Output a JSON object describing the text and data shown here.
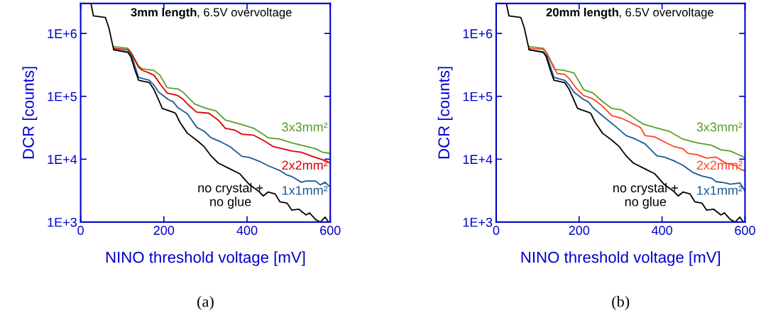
{
  "chart_data": [
    {
      "type": "line",
      "title": "3mm length",
      "subtitle": ", 6.5V overvoltage",
      "xlabel": "NINO threshold voltage [mV]",
      "ylabel": "DCR [counts]",
      "log": "y",
      "xlim": [
        0,
        600
      ],
      "xticks": [
        0,
        200,
        400,
        600
      ],
      "ylim": [
        1000,
        3000000
      ],
      "yticks": [
        {
          "value": 1000,
          "label": "1E+3"
        },
        {
          "value": 10000,
          "label": "1E+4"
        },
        {
          "value": 100000,
          "label": "1E+5"
        },
        {
          "value": 1000000,
          "label": "1E+6"
        }
      ],
      "grid": false,
      "legend": false,
      "annotations": [
        "(a)"
      ],
      "series": [
        {
          "name": "3x3mm²",
          "color": "#5a9e2c",
          "x": [
            79.4,
            113.6,
            122.2,
            139.3,
            147.8,
            176.4,
            190.7,
            207.8,
            233.5,
            245,
            273.5,
            302,
            324.8,
            347.7,
            381.9,
            416.2,
            450.4,
            479,
            507.5,
            530.4,
            564.6,
            581.6,
            600
          ],
          "values": [
            620000,
            580000,
            490000,
            305000,
            275000,
            257000,
            216000,
            137000,
            131000,
            118000,
            76000,
            64000,
            59000,
            42000,
            36500,
            31000,
            22000,
            20800,
            18200,
            16700,
            14700,
            12900,
            12400
          ]
        },
        {
          "name": "2x2mm²",
          "color": "#e00000",
          "x": [
            79.4,
            113.6,
            122.2,
            139.3,
            147.8,
            165,
            176.4,
            193.5,
            207.8,
            233.5,
            245,
            262,
            279.2,
            307.7,
            330.6,
            347.7,
            370.5,
            387.6,
            416.2,
            439,
            462,
            484.7,
            507.5,
            530.4,
            553.2,
            587.5,
            600
          ],
          "values": [
            580000,
            550000,
            470000,
            290000,
            260000,
            235000,
            216000,
            150000,
            113000,
            103000,
            91000,
            70000,
            56000,
            54000,
            42000,
            31000,
            29000,
            25000,
            24000,
            20000,
            16000,
            14700,
            13500,
            12900,
            11300,
            9500,
            8700
          ]
        },
        {
          "name": "1x1mm²",
          "color": "#1a5a96",
          "x": [
            79.4,
            113.6,
            122.2,
            130.7,
            139.3,
            165,
            176.4,
            187.8,
            210.7,
            222.1,
            233.5,
            256.3,
            279.2,
            296.3,
            313.4,
            336.3,
            359.1,
            387.6,
            404.8,
            427.6,
            450.4,
            479,
            496.1,
            507.5,
            530.4,
            541.8,
            564.6,
            576,
            587.5,
            600
          ],
          "values": [
            550000,
            510000,
            440000,
            300000,
            200000,
            180000,
            150000,
            116000,
            89000,
            82000,
            66000,
            53000,
            32000,
            28000,
            22000,
            19000,
            15800,
            11100,
            10700,
            9400,
            7900,
            6600,
            5600,
            5300,
            4300,
            4500,
            4500,
            3900,
            4300,
            3600
          ]
        },
        {
          "name": "no crystal +\nno glue",
          "color": "#000000",
          "x": [
            25.1,
            30.8,
            59.4,
            67.9,
            79.4,
            113.6,
            120.5,
            130.7,
            139.3,
            165,
            176.4,
            196.4,
            222.1,
            227.8,
            239.2,
            256.3,
            279.2,
            296.3,
            313.4,
            330.6,
            359.1,
            381.9,
            404.8,
            427.6,
            439,
            450.4,
            467.6,
            479,
            496.1,
            507.5,
            524.7,
            541.8,
            550.4,
            564.6,
            576,
            587.5,
            596
          ],
          "values": [
            2900000,
            1900000,
            1800000,
            1220000,
            550000,
            500000,
            430000,
            260000,
            180000,
            166000,
            128000,
            64000,
            56000,
            54000,
            38000,
            26000,
            20000,
            16000,
            11300,
            8700,
            7000,
            5900,
            4000,
            3100,
            2600,
            3000,
            2800,
            2100,
            2000,
            1550,
            1600,
            1300,
            1400,
            1100,
            1000,
            1200,
            1000
          ]
        }
      ]
    },
    {
      "type": "line",
      "title": "20mm length",
      "subtitle": ", 6.5V overvoltage",
      "xlabel": "NINO threshold voltage [mV]",
      "ylabel": "DCR [counts]",
      "log": "y",
      "xlim": [
        0,
        600
      ],
      "xticks": [
        0,
        200,
        400,
        600
      ],
      "ylim": [
        1000,
        3000000
      ],
      "yticks": [
        {
          "value": 1000,
          "label": "1E+3"
        },
        {
          "value": 10000,
          "label": "1E+4"
        },
        {
          "value": 100000,
          "label": "1E+5"
        },
        {
          "value": 1000000,
          "label": "1E+6"
        }
      ],
      "grid": false,
      "legend": false,
      "annotations": [
        "(b)"
      ],
      "series": [
        {
          "name": "3x3mm²",
          "color": "#5a9e2c",
          "x": [
            79.4,
            113.6,
            122.2,
            142.1,
            165,
            187.8,
            210.7,
            233.5,
            256.3,
            279.2,
            302,
            324.8,
            353.4,
            381.9,
            416.2,
            450.4,
            484.7,
            518.9,
            541.8,
            564.6,
            600
          ],
          "values": [
            620000,
            580000,
            490000,
            270000,
            257000,
            235000,
            128000,
            113000,
            83000,
            64000,
            61000,
            49000,
            36500,
            32000,
            28000,
            20800,
            18200,
            16700,
            14100,
            13500,
            10600
          ]
        },
        {
          "name": "2x2mm²",
          "color": "#ff4422",
          "x": [
            79.4,
            113.6,
            122.2,
            139.3,
            147.8,
            165,
            176.4,
            193.5,
            210.7,
            233.5,
            256.3,
            279.2,
            302,
            324.8,
            347.7,
            359.1,
            381.9,
            404.8,
            427.6,
            450.4,
            462,
            484.7,
            507.5,
            530.4,
            553.2,
            576,
            587.5,
            600
          ],
          "values": [
            580000,
            560000,
            480000,
            280000,
            230000,
            225000,
            190000,
            134000,
            103000,
            91000,
            70000,
            49000,
            45000,
            38000,
            32000,
            23700,
            22700,
            19000,
            16000,
            14700,
            12400,
            11800,
            10400,
            10800,
            8700,
            8000,
            7000,
            6500
          ]
        },
        {
          "name": "1x1mm²",
          "color": "#1a5a96",
          "x": [
            79.4,
            113.6,
            122.2,
            130.7,
            139.3,
            165,
            176.4,
            187.8,
            210.7,
            222.1,
            233.5,
            256.3,
            290.6,
            313.4,
            336.3,
            359.1,
            387.6,
            404.8,
            427.6,
            450.4,
            473.3,
            496.1,
            518.9,
            530.4,
            553.2,
            564.6,
            587.5,
            600
          ],
          "values": [
            550000,
            510000,
            440000,
            300000,
            200000,
            180000,
            150000,
            116000,
            89000,
            82000,
            66000,
            49000,
            32000,
            23700,
            20800,
            17500,
            11300,
            10800,
            9500,
            8000,
            6200,
            5400,
            5000,
            4400,
            4200,
            4000,
            4200,
            3100
          ]
        },
        {
          "name": "no crystal +\nno glue",
          "color": "#000000",
          "x": [
            25.1,
            30.8,
            59.4,
            67.9,
            79.4,
            113.6,
            120.5,
            130.7,
            139.3,
            165,
            176.4,
            196.4,
            222.1,
            227.8,
            239.2,
            256.3,
            279.2,
            296.3,
            313.4,
            330.6,
            359.1,
            381.9,
            404.8,
            427.6,
            439,
            450.4,
            467.6,
            479,
            496.1,
            507.5,
            524.7,
            541.8,
            550.4,
            564.6,
            576,
            587.5,
            596
          ],
          "values": [
            2900000,
            1900000,
            1800000,
            1220000,
            550000,
            500000,
            430000,
            260000,
            180000,
            166000,
            128000,
            64000,
            56000,
            54000,
            38000,
            26000,
            20000,
            16000,
            11300,
            8700,
            7000,
            5900,
            4000,
            3100,
            2600,
            3000,
            2800,
            2100,
            2000,
            1550,
            1600,
            1300,
            1400,
            1100,
            1000,
            1200,
            1000
          ]
        }
      ]
    }
  ]
}
